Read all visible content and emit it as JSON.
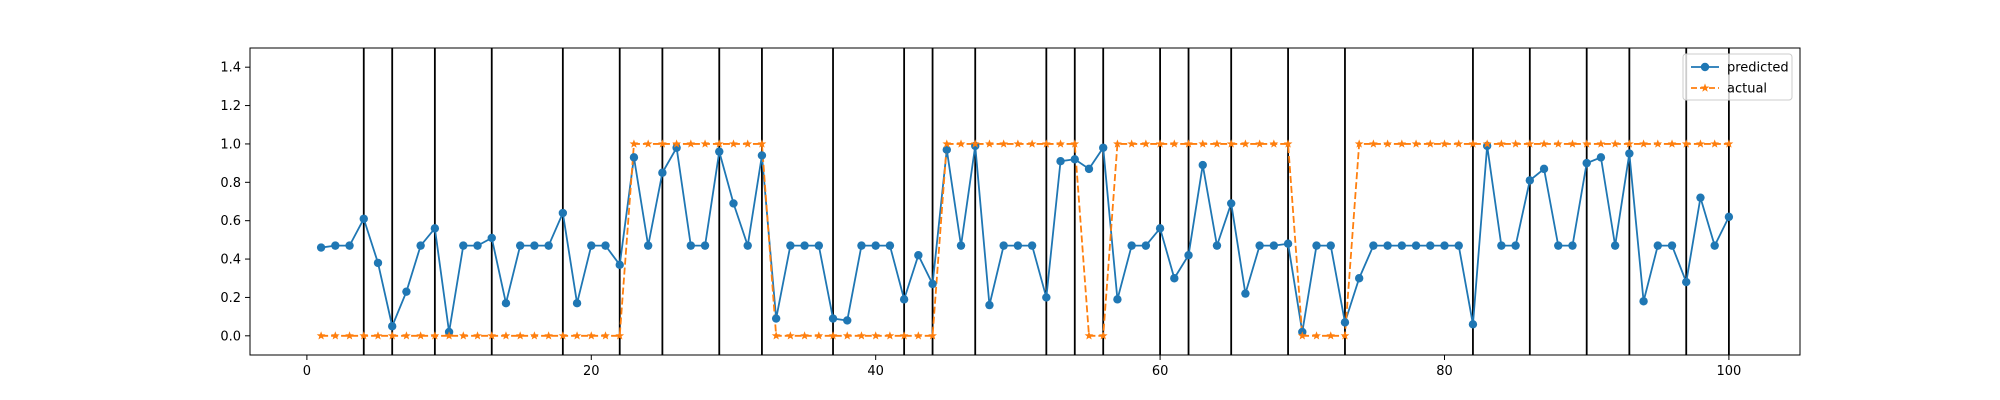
{
  "chart_data": {
    "type": "line",
    "xlim": [
      -4,
      105
    ],
    "ylim": [
      -0.1,
      1.5
    ],
    "x_ticks": [
      0,
      20,
      40,
      60,
      80,
      100
    ],
    "y_ticks": [
      0.0,
      0.2,
      0.4,
      0.6,
      0.8,
      1.0,
      1.2,
      1.4
    ],
    "x_tick_labels": [
      "0",
      "20",
      "40",
      "60",
      "80",
      "100"
    ],
    "y_tick_labels": [
      "0.0",
      "0.2",
      "0.4",
      "0.6",
      "0.8",
      "1.0",
      "1.2",
      "1.4"
    ],
    "legend_position": "top-right",
    "grid": false,
    "vertical_lines_x": [
      4,
      6,
      9,
      13,
      18,
      22,
      25,
      29,
      32,
      37,
      42,
      44,
      47,
      52,
      54,
      56,
      60,
      62,
      65,
      69,
      73,
      82,
      86,
      90,
      93,
      97,
      100
    ],
    "x": [
      1,
      2,
      3,
      4,
      5,
      6,
      7,
      8,
      9,
      10,
      11,
      12,
      13,
      14,
      15,
      16,
      17,
      18,
      19,
      20,
      21,
      22,
      23,
      24,
      25,
      26,
      27,
      28,
      29,
      30,
      31,
      32,
      33,
      34,
      35,
      36,
      37,
      38,
      39,
      40,
      41,
      42,
      43,
      44,
      45,
      46,
      47,
      48,
      49,
      50,
      51,
      52,
      53,
      54,
      55,
      56,
      57,
      58,
      59,
      60,
      61,
      62,
      63,
      64,
      65,
      66,
      67,
      68,
      69,
      70,
      71,
      72,
      73,
      74,
      75,
      76,
      77,
      78,
      79,
      80,
      81,
      82,
      83,
      84,
      85,
      86,
      87,
      88,
      89,
      90,
      91,
      92,
      93,
      94,
      95,
      96,
      97,
      98,
      99,
      100
    ],
    "series": [
      {
        "name": "predicted",
        "color": "#1f77b4",
        "marker": "circle",
        "linestyle": "solid",
        "values": [
          0.46,
          0.47,
          0.47,
          0.61,
          0.38,
          0.05,
          0.23,
          0.47,
          0.56,
          0.02,
          0.47,
          0.47,
          0.51,
          0.17,
          0.47,
          0.47,
          0.47,
          0.64,
          0.17,
          0.47,
          0.47,
          0.37,
          0.93,
          0.47,
          0.85,
          0.98,
          0.47,
          0.47,
          0.96,
          0.69,
          0.47,
          0.94,
          0.09,
          0.47,
          0.47,
          0.47,
          0.09,
          0.08,
          0.47,
          0.47,
          0.47,
          0.19,
          0.42,
          0.27,
          0.97,
          0.47,
          0.99,
          0.16,
          0.47,
          0.47,
          0.47,
          0.2,
          0.91,
          0.92,
          0.87,
          0.98,
          0.19,
          0.47,
          0.47,
          0.56,
          0.3,
          0.42,
          0.89,
          0.47,
          0.69,
          0.22,
          0.47,
          0.47,
          0.48,
          0.02,
          0.47,
          0.47,
          0.07,
          0.3,
          0.47,
          0.47,
          0.47,
          0.47,
          0.47,
          0.47,
          0.47,
          0.06,
          0.99,
          0.47,
          0.47,
          0.81,
          0.87,
          0.47,
          0.47,
          0.9,
          0.93,
          0.47,
          0.95,
          0.18,
          0.47,
          0.47,
          0.28,
          0.72,
          0.47,
          0.62
        ]
      },
      {
        "name": "actual",
        "color": "#ff7f0e",
        "marker": "star",
        "linestyle": "dashed",
        "values": [
          0,
          0,
          0,
          0,
          0,
          0,
          0,
          0,
          0,
          0,
          0,
          0,
          0,
          0,
          0,
          0,
          0,
          0,
          0,
          0,
          0,
          0,
          1,
          1,
          1,
          1,
          1,
          1,
          1,
          1,
          1,
          1,
          0,
          0,
          0,
          0,
          0,
          0,
          0,
          0,
          0,
          0,
          0,
          0,
          1,
          1,
          1,
          1,
          1,
          1,
          1,
          1,
          1,
          1,
          0,
          0,
          1,
          1,
          1,
          1,
          1,
          1,
          1,
          1,
          1,
          1,
          1,
          1,
          1,
          0,
          0,
          0,
          0,
          1,
          1,
          1,
          1,
          1,
          1,
          1,
          1,
          1,
          1,
          1,
          1,
          1,
          1,
          1,
          1,
          1,
          1,
          1,
          1,
          1,
          1,
          1,
          1,
          1,
          1,
          1
        ]
      }
    ]
  }
}
